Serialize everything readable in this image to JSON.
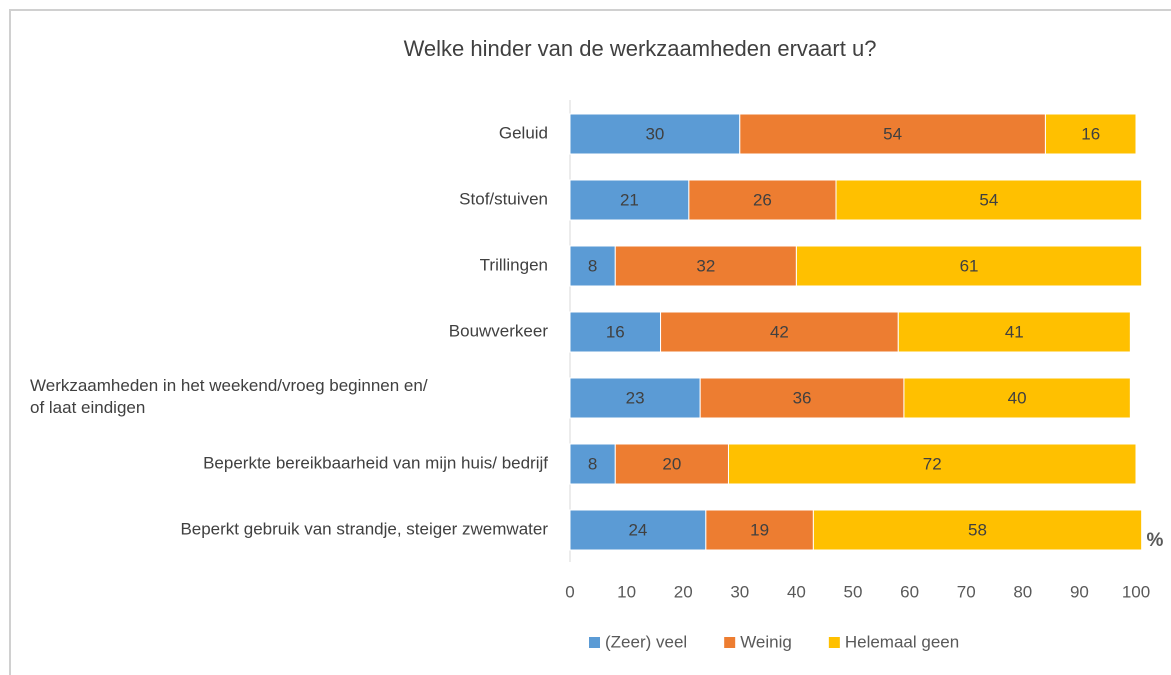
{
  "chart_data": {
    "type": "stacked-bar-horizontal",
    "title": "Welke hinder van de werkzaamheden ervaart u?",
    "categories": [
      "Geluid",
      "Stof/stuiven",
      "Trillingen",
      "Bouwverkeer",
      "Werkzaamheden in het weekend/vroeg beginnen en/ of laat eindigen",
      "Beperkte bereikbaarheid van mijn huis/ bedrijf",
      "Beperkt gebruik van strandje, steiger zwemwater"
    ],
    "series": [
      {
        "name": "(Zeer) veel",
        "color": "#5b9bd5",
        "values": [
          30,
          21,
          8,
          16,
          23,
          8,
          24
        ]
      },
      {
        "name": "Weinig",
        "color": "#ed7d31",
        "values": [
          54,
          26,
          32,
          42,
          36,
          20,
          19
        ]
      },
      {
        "name": "Helemaal geen",
        "color": "#ffc000",
        "values": [
          16,
          54,
          61,
          41,
          40,
          72,
          58
        ]
      }
    ],
    "xlabel": "%",
    "xlim": [
      0,
      100
    ],
    "xticks": [
      0,
      10,
      20,
      30,
      40,
      50,
      60,
      70,
      80,
      90,
      100
    ],
    "legend": "bottom"
  }
}
